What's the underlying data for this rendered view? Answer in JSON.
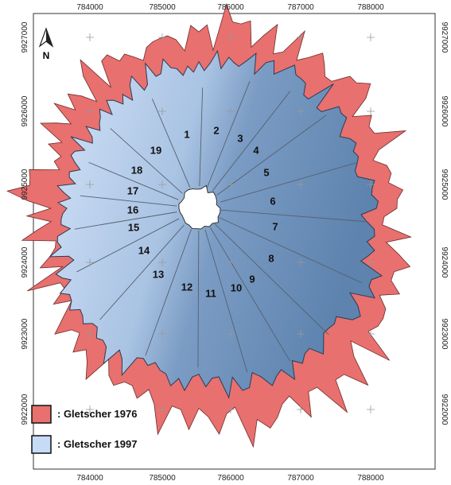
{
  "map": {
    "north_label": "N",
    "x_labels": [
      "784000",
      "785000",
      "786000",
      "787000",
      "788000"
    ],
    "y_labels": [
      "9927000",
      "9926000",
      "9925000",
      "9924000",
      "9923000",
      "9922000"
    ],
    "sectors": [
      "1",
      "2",
      "3",
      "4",
      "5",
      "6",
      "7",
      "8",
      "9",
      "10",
      "11",
      "12",
      "13",
      "14",
      "15",
      "16",
      "17",
      "18",
      "19"
    ],
    "legend": [
      {
        "label": ": Gletscher 1976",
        "color": "#e8706e"
      },
      {
        "label": ": Gletscher 1997",
        "color": "#c6dbf5"
      }
    ]
  }
}
